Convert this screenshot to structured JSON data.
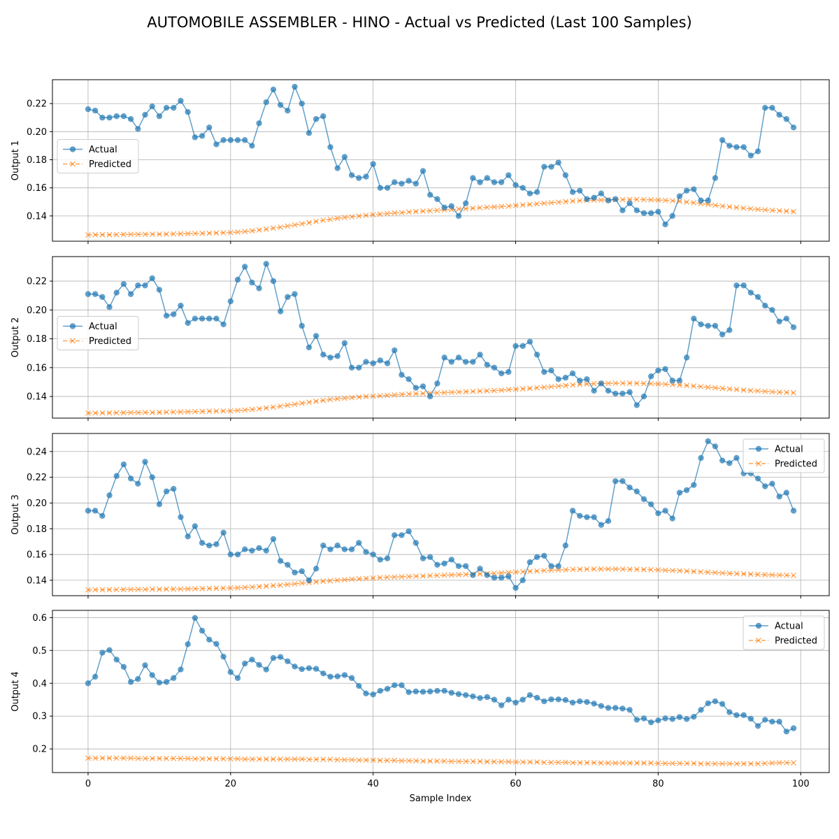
{
  "title": "AUTOMOBILE ASSEMBLER - HINO - Actual vs Predicted (Last 100 Samples)",
  "xlabel": "Sample Index",
  "legend": {
    "actual": "Actual",
    "predicted": "Predicted"
  },
  "colors": {
    "actual": "#1f77b4",
    "predicted": "#ff7f0e"
  },
  "chart_data": [
    {
      "type": "line",
      "ylabel": "Output 1",
      "xlim": [
        -5,
        104
      ],
      "ylim": [
        0.122,
        0.237
      ],
      "xticks": [
        0,
        20,
        40,
        60,
        80,
        100
      ],
      "yticks": [
        0.14,
        0.16,
        0.18,
        0.2,
        0.22
      ],
      "legend_loc": "center-left",
      "grid": true,
      "series": [
        {
          "name": "Actual",
          "values": [
            0.216,
            0.215,
            0.21,
            0.21,
            0.211,
            0.211,
            0.209,
            0.202,
            0.212,
            0.218,
            0.211,
            0.217,
            0.217,
            0.222,
            0.214,
            0.196,
            0.197,
            0.203,
            0.191,
            0.194,
            0.194,
            0.194,
            0.194,
            0.19,
            0.206,
            0.221,
            0.23,
            0.219,
            0.215,
            0.232,
            0.22,
            0.199,
            0.209,
            0.211,
            0.189,
            0.174,
            0.182,
            0.169,
            0.167,
            0.168,
            0.177,
            0.16,
            0.16,
            0.164,
            0.163,
            0.165,
            0.163,
            0.172,
            0.155,
            0.152,
            0.146,
            0.147,
            0.14,
            0.149,
            0.167,
            0.164,
            0.167,
            0.164,
            0.164,
            0.169,
            0.162,
            0.16,
            0.156,
            0.157,
            0.175,
            0.175,
            0.178,
            0.169,
            0.157,
            0.158,
            0.152,
            0.153,
            0.156,
            0.151,
            0.152,
            0.144,
            0.149,
            0.144,
            0.142,
            0.142,
            0.143,
            0.134,
            0.14,
            0.154,
            0.158,
            0.159,
            0.151,
            0.151,
            0.167,
            0.194,
            0.19,
            0.189,
            0.189,
            0.183,
            0.186,
            0.217,
            0.217,
            0.212,
            0.209,
            0.203
          ]
        },
        {
          "name": "Predicted",
          "values": [
            0.1265,
            0.1266,
            0.1266,
            0.1266,
            0.1267,
            0.1268,
            0.1269,
            0.1269,
            0.1269,
            0.127,
            0.127,
            0.1271,
            0.1272,
            0.1273,
            0.1274,
            0.1275,
            0.1276,
            0.1277,
            0.1279,
            0.128,
            0.1282,
            0.1285,
            0.1289,
            0.1294,
            0.13,
            0.1306,
            0.1313,
            0.132,
            0.1328,
            0.1336,
            0.1344,
            0.1352,
            0.1361,
            0.1369,
            0.1376,
            0.1383,
            0.1389,
            0.1394,
            0.1399,
            0.1404,
            0.1409,
            0.1413,
            0.1417,
            0.1421,
            0.1424,
            0.1428,
            0.1431,
            0.1434,
            0.1437,
            0.144,
            0.1443,
            0.1446,
            0.1449,
            0.1452,
            0.1455,
            0.1458,
            0.1461,
            0.1464,
            0.1467,
            0.147,
            0.1474,
            0.1478,
            0.1482,
            0.1486,
            0.149,
            0.1494,
            0.1498,
            0.1502,
            0.1506,
            0.1509,
            0.1511,
            0.1512,
            0.1513,
            0.1514,
            0.1515,
            0.1516,
            0.1517,
            0.1517,
            0.1516,
            0.1515,
            0.1513,
            0.1511,
            0.1508,
            0.1504,
            0.1499,
            0.1494,
            0.1488,
            0.1482,
            0.1476,
            0.147,
            0.1465,
            0.146,
            0.1455,
            0.1451,
            0.1447,
            0.1443,
            0.144,
            0.1437,
            0.1434,
            0.1431
          ]
        }
      ]
    },
    {
      "type": "line",
      "ylabel": "Output 2",
      "xlim": [
        -5,
        104
      ],
      "ylim": [
        0.125,
        0.237
      ],
      "xticks": [
        0,
        20,
        40,
        60,
        80,
        100
      ],
      "yticks": [
        0.14,
        0.16,
        0.18,
        0.2,
        0.22
      ],
      "legend_loc": "center-left",
      "grid": true,
      "series": [
        {
          "name": "Actual",
          "values": [
            0.211,
            0.211,
            0.209,
            0.202,
            0.212,
            0.218,
            0.211,
            0.217,
            0.217,
            0.222,
            0.214,
            0.196,
            0.197,
            0.203,
            0.191,
            0.194,
            0.194,
            0.194,
            0.194,
            0.19,
            0.206,
            0.221,
            0.23,
            0.219,
            0.215,
            0.232,
            0.22,
            0.199,
            0.209,
            0.211,
            0.189,
            0.174,
            0.182,
            0.169,
            0.167,
            0.168,
            0.177,
            0.16,
            0.16,
            0.164,
            0.163,
            0.165,
            0.163,
            0.172,
            0.155,
            0.152,
            0.146,
            0.147,
            0.14,
            0.149,
            0.167,
            0.164,
            0.167,
            0.164,
            0.164,
            0.169,
            0.162,
            0.16,
            0.156,
            0.157,
            0.175,
            0.175,
            0.178,
            0.169,
            0.157,
            0.158,
            0.152,
            0.153,
            0.156,
            0.151,
            0.152,
            0.144,
            0.149,
            0.144,
            0.142,
            0.142,
            0.143,
            0.134,
            0.14,
            0.154,
            0.158,
            0.159,
            0.151,
            0.151,
            0.167,
            0.194,
            0.19,
            0.189,
            0.189,
            0.183,
            0.186,
            0.217,
            0.217,
            0.212,
            0.209,
            0.203,
            0.2,
            0.192,
            0.194,
            0.188
          ]
        },
        {
          "name": "Predicted",
          "values": [
            0.1285,
            0.1285,
            0.1286,
            0.1286,
            0.1287,
            0.1287,
            0.1288,
            0.1288,
            0.1289,
            0.1289,
            0.129,
            0.1291,
            0.1292,
            0.1293,
            0.1294,
            0.1295,
            0.1296,
            0.1297,
            0.1298,
            0.1299,
            0.13,
            0.1303,
            0.1306,
            0.131,
            0.1315,
            0.132,
            0.1326,
            0.1332,
            0.1339,
            0.1346,
            0.1353,
            0.136,
            0.1367,
            0.1373,
            0.1379,
            0.1384,
            0.1388,
            0.1392,
            0.1396,
            0.1399,
            0.1402,
            0.1405,
            0.1408,
            0.1411,
            0.1414,
            0.1417,
            0.1419,
            0.1421,
            0.1423,
            0.1425,
            0.1427,
            0.1429,
            0.1431,
            0.1433,
            0.1435,
            0.1437,
            0.1439,
            0.1441,
            0.1444,
            0.1447,
            0.145,
            0.1453,
            0.1456,
            0.146,
            0.1464,
            0.1468,
            0.1472,
            0.1476,
            0.148,
            0.1484,
            0.1487,
            0.1489,
            0.149,
            0.1491,
            0.1492,
            0.1492,
            0.1492,
            0.1491,
            0.149,
            0.1489,
            0.1487,
            0.1485,
            0.1482,
            0.1479,
            0.1476,
            0.1472,
            0.1468,
            0.1464,
            0.146,
            0.1456,
            0.1452,
            0.1448,
            0.1444,
            0.1441,
            0.1438,
            0.1435,
            0.1432,
            0.143,
            0.1428,
            0.1426
          ]
        }
      ]
    },
    {
      "type": "line",
      "ylabel": "Output 3",
      "xlim": [
        -5,
        104
      ],
      "ylim": [
        0.128,
        0.254
      ],
      "xticks": [
        0,
        20,
        40,
        60,
        80,
        100
      ],
      "yticks": [
        0.14,
        0.16,
        0.18,
        0.2,
        0.22,
        0.24
      ],
      "legend_loc": "top-right",
      "grid": true,
      "series": [
        {
          "name": "Actual",
          "values": [
            0.194,
            0.194,
            0.19,
            0.206,
            0.221,
            0.23,
            0.219,
            0.215,
            0.232,
            0.22,
            0.199,
            0.209,
            0.211,
            0.189,
            0.174,
            0.182,
            0.169,
            0.167,
            0.168,
            0.177,
            0.16,
            0.16,
            0.164,
            0.163,
            0.165,
            0.163,
            0.172,
            0.155,
            0.152,
            0.146,
            0.147,
            0.14,
            0.149,
            0.167,
            0.164,
            0.167,
            0.164,
            0.164,
            0.169,
            0.162,
            0.16,
            0.156,
            0.157,
            0.175,
            0.175,
            0.178,
            0.169,
            0.157,
            0.158,
            0.152,
            0.153,
            0.156,
            0.151,
            0.151,
            0.144,
            0.149,
            0.144,
            0.142,
            0.142,
            0.143,
            0.134,
            0.14,
            0.154,
            0.158,
            0.159,
            0.151,
            0.151,
            0.167,
            0.194,
            0.19,
            0.189,
            0.189,
            0.183,
            0.186,
            0.217,
            0.217,
            0.212,
            0.209,
            0.203,
            0.199,
            0.192,
            0.194,
            0.188,
            0.208,
            0.21,
            0.214,
            0.235,
            0.248,
            0.244,
            0.233,
            0.231,
            0.235,
            0.223,
            0.223,
            0.219,
            0.213,
            0.215,
            0.205,
            0.208,
            0.194
          ]
        },
        {
          "name": "Predicted",
          "values": [
            0.1325,
            0.1326,
            0.1326,
            0.1327,
            0.1327,
            0.1328,
            0.1328,
            0.1329,
            0.1329,
            0.133,
            0.133,
            0.1331,
            0.1331,
            0.1332,
            0.1333,
            0.1334,
            0.1335,
            0.1336,
            0.1337,
            0.1338,
            0.1339,
            0.1341,
            0.1344,
            0.1347,
            0.135,
            0.1354,
            0.1358,
            0.1362,
            0.1367,
            0.1372,
            0.1377,
            0.1382,
            0.1387,
            0.1392,
            0.1396,
            0.14,
            0.1404,
            0.1408,
            0.1411,
            0.1414,
            0.1417,
            0.142,
            0.1423,
            0.1425,
            0.1427,
            0.1429,
            0.1431,
            0.1433,
            0.1435,
            0.1437,
            0.1439,
            0.1441,
            0.1443,
            0.1445,
            0.1447,
            0.1449,
            0.1451,
            0.1454,
            0.1457,
            0.146,
            0.1463,
            0.1466,
            0.1469,
            0.1472,
            0.1475,
            0.1478,
            0.148,
            0.1482,
            0.1484,
            0.1485,
            0.1486,
            0.1487,
            0.1487,
            0.1487,
            0.1487,
            0.1486,
            0.1485,
            0.1484,
            0.1483,
            0.1482,
            0.148,
            0.1478,
            0.1476,
            0.1474,
            0.1471,
            0.1468,
            0.1465,
            0.1462,
            0.1459,
            0.1456,
            0.1453,
            0.1451,
            0.1449,
            0.1447,
            0.1445,
            0.1443,
            0.1441,
            0.144,
            0.1439,
            0.1438
          ]
        }
      ]
    },
    {
      "type": "line",
      "ylabel": "Output 4",
      "xlim": [
        -5,
        104
      ],
      "ylim": [
        0.128,
        0.622
      ],
      "xticks": [
        0,
        20,
        40,
        60,
        80,
        100
      ],
      "yticks": [
        0.2,
        0.3,
        0.4,
        0.5,
        0.6
      ],
      "legend_loc": "top-right",
      "grid": true,
      "series": [
        {
          "name": "Actual",
          "values": [
            0.4,
            0.42,
            0.493,
            0.501,
            0.472,
            0.45,
            0.404,
            0.413,
            0.455,
            0.425,
            0.402,
            0.404,
            0.416,
            0.442,
            0.519,
            0.599,
            0.56,
            0.533,
            0.52,
            0.481,
            0.434,
            0.416,
            0.46,
            0.472,
            0.456,
            0.442,
            0.477,
            0.48,
            0.467,
            0.451,
            0.443,
            0.446,
            0.444,
            0.43,
            0.42,
            0.421,
            0.425,
            0.416,
            0.392,
            0.369,
            0.366,
            0.377,
            0.383,
            0.394,
            0.394,
            0.373,
            0.375,
            0.374,
            0.375,
            0.377,
            0.377,
            0.371,
            0.367,
            0.364,
            0.36,
            0.355,
            0.358,
            0.35,
            0.333,
            0.35,
            0.341,
            0.35,
            0.364,
            0.356,
            0.345,
            0.351,
            0.351,
            0.349,
            0.341,
            0.345,
            0.343,
            0.338,
            0.331,
            0.325,
            0.325,
            0.323,
            0.319,
            0.289,
            0.293,
            0.281,
            0.287,
            0.293,
            0.291,
            0.297,
            0.291,
            0.298,
            0.319,
            0.339,
            0.345,
            0.337,
            0.312,
            0.303,
            0.303,
            0.292,
            0.27,
            0.289,
            0.283,
            0.283,
            0.253,
            0.263
          ]
        },
        {
          "name": "Predicted",
          "values": [
            0.172,
            0.172,
            0.172,
            0.172,
            0.172,
            0.172,
            0.172,
            0.171,
            0.171,
            0.171,
            0.171,
            0.171,
            0.171,
            0.171,
            0.171,
            0.17,
            0.17,
            0.17,
            0.17,
            0.17,
            0.17,
            0.17,
            0.169,
            0.169,
            0.169,
            0.169,
            0.169,
            0.169,
            0.169,
            0.169,
            0.169,
            0.168,
            0.168,
            0.168,
            0.168,
            0.167,
            0.167,
            0.167,
            0.166,
            0.166,
            0.166,
            0.165,
            0.165,
            0.165,
            0.164,
            0.164,
            0.164,
            0.163,
            0.163,
            0.163,
            0.163,
            0.162,
            0.162,
            0.162,
            0.162,
            0.162,
            0.161,
            0.161,
            0.161,
            0.161,
            0.16,
            0.16,
            0.16,
            0.16,
            0.159,
            0.159,
            0.159,
            0.159,
            0.158,
            0.158,
            0.158,
            0.158,
            0.157,
            0.157,
            0.157,
            0.157,
            0.157,
            0.157,
            0.157,
            0.157,
            0.156,
            0.156,
            0.156,
            0.156,
            0.156,
            0.156,
            0.155,
            0.155,
            0.155,
            0.155,
            0.155,
            0.155,
            0.155,
            0.155,
            0.155,
            0.156,
            0.157,
            0.158,
            0.158,
            0.158
          ]
        }
      ]
    }
  ]
}
